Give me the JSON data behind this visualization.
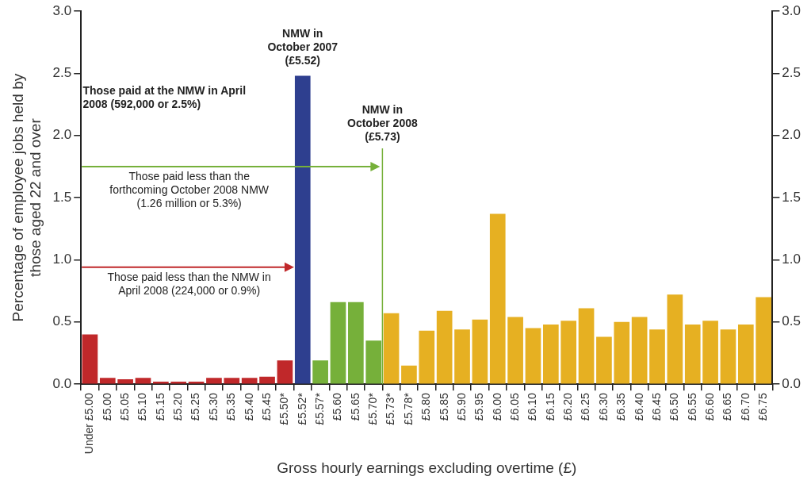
{
  "chart_data": {
    "type": "bar",
    "categories": [
      "Under £5.00",
      "£5.00",
      "£5.05",
      "£5.10",
      "£5.15",
      "£5.20",
      "£5.25",
      "£5.30",
      "£5.35",
      "£5.40",
      "£5.45",
      "£5.50*",
      "£5.52*",
      "£5.57*",
      "£5.60",
      "£5.65",
      "£5.70*",
      "£5.73*",
      "£5.78*",
      "£5.80",
      "£5.85",
      "£5.90",
      "£5.95",
      "£6.00",
      "£6.05",
      "£6.10",
      "£6.15",
      "£6.20",
      "£6.25",
      "£6.30",
      "£6.35",
      "£6.40",
      "£6.45",
      "£6.50",
      "£6.55",
      "£6.60",
      "£6.65",
      "£6.70",
      "£6.75"
    ],
    "values": [
      0.4,
      0.05,
      0.04,
      0.05,
      0.02,
      0.02,
      0.02,
      0.05,
      0.05,
      0.05,
      0.06,
      0.19,
      2.48,
      0.19,
      0.66,
      0.66,
      0.35,
      0.57,
      0.15,
      0.43,
      0.59,
      0.44,
      0.52,
      1.37,
      0.54,
      0.45,
      0.48,
      0.51,
      0.61,
      0.38,
      0.5,
      0.54,
      0.44,
      0.72,
      0.48,
      0.51,
      0.44,
      0.48,
      0.7
    ],
    "colors": [
      "#c0282a",
      "#c0282a",
      "#c0282a",
      "#c0282a",
      "#c0282a",
      "#c0282a",
      "#c0282a",
      "#c0282a",
      "#c0282a",
      "#c0282a",
      "#c0282a",
      "#c0282a",
      "#2e3f8f",
      "#76b03a",
      "#76b03a",
      "#76b03a",
      "#76b03a",
      "#e6b022",
      "#e6b022",
      "#e6b022",
      "#e6b022",
      "#e6b022",
      "#e6b022",
      "#e6b022",
      "#e6b022",
      "#e6b022",
      "#e6b022",
      "#e6b022",
      "#e6b022",
      "#e6b022",
      "#e6b022",
      "#e6b022",
      "#e6b022",
      "#e6b022",
      "#e6b022",
      "#e6b022",
      "#e6b022",
      "#e6b022",
      "#e6b022"
    ],
    "xlabel": "Gross hourly earnings excluding overtime (£)",
    "ylabel": "Percentage of employee jobs held by those aged 22 and over",
    "ylim": [
      0,
      3.0
    ],
    "yticks": [
      {
        "value": 0,
        "label": "0.0"
      },
      {
        "value": 0.5,
        "label": "0.5"
      },
      {
        "value": 1,
        "label": "1.0"
      },
      {
        "value": 1.5,
        "label": "1.5"
      },
      {
        "value": 2,
        "label": "2.0"
      },
      {
        "value": 2.5,
        "label": "2.5"
      },
      {
        "value": 3,
        "label": "3.0"
      }
    ],
    "y2lim": [
      0,
      3.0
    ],
    "y2ticks": [
      {
        "value": 0,
        "label": "0.0"
      },
      {
        "value": 0.5,
        "label": "0.5"
      },
      {
        "value": 1,
        "label": "1.0"
      },
      {
        "value": 1.5,
        "label": "1.5"
      },
      {
        "value": 2,
        "label": "2.0"
      },
      {
        "value": 2.5,
        "label": "2.5"
      },
      {
        "value": 3,
        "label": "3.0"
      }
    ],
    "ref_lines": [
      {
        "axis": "x",
        "value": "£5.73*",
        "label": "NMW in October 2008 (£5.73)",
        "color": "#76b03a"
      }
    ],
    "annotations": [
      {
        "text": "NMW in October 2007 (£5.52)",
        "x": "£5.52*",
        "y": 2.48
      },
      "Those paid at the NMW in April 2008 (592,000 or 2.5%)",
      "Those paid less than the forthcoming October 2008 NMW (1.26 million or 5.3%)",
      "Those paid less than the NMW in April 2008 (224,000 or 0.9%)"
    ],
    "grid": false,
    "legend": false
  }
}
